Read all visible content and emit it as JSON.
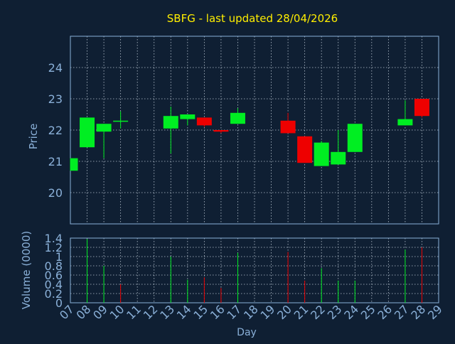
{
  "chart_data": {
    "type": "candlestick",
    "title": "SBFG - last updated 28/04/2026",
    "xlabel": "Day",
    "x_ticks": [
      "07",
      "08",
      "09",
      "10",
      "11",
      "12",
      "13",
      "14",
      "15",
      "16",
      "17",
      "18",
      "19",
      "20",
      "21",
      "22",
      "23",
      "24",
      "25",
      "26",
      "27",
      "28",
      "29"
    ],
    "price_panel": {
      "ylabel": "Price",
      "ylim": [
        19.0,
        25.0
      ],
      "y_ticks": [
        "20",
        "21",
        "22",
        "23",
        "24"
      ],
      "candles": [
        {
          "day": 7,
          "open": 20.7,
          "high": 21.1,
          "low": 20.7,
          "close": 21.1
        },
        {
          "day": 8,
          "open": 21.45,
          "high": 22.4,
          "low": 21.45,
          "close": 22.4
        },
        {
          "day": 9,
          "open": 21.95,
          "high": 22.2,
          "low": 21.1,
          "close": 22.2
        },
        {
          "day": 10,
          "open": 22.3,
          "high": 22.6,
          "low": 22.05,
          "close": 22.3
        },
        {
          "day": 13,
          "open": 22.05,
          "high": 22.75,
          "low": 21.25,
          "close": 22.45
        },
        {
          "day": 14,
          "open": 22.35,
          "high": 22.5,
          "low": 22.15,
          "close": 22.5
        },
        {
          "day": 15,
          "open": 22.4,
          "high": 22.4,
          "low": 22.1,
          "close": 22.15
        },
        {
          "day": 16,
          "open": 22.0,
          "high": 22.0,
          "low": 21.9,
          "close": 21.95
        },
        {
          "day": 17,
          "open": 22.2,
          "high": 22.7,
          "low": 22.2,
          "close": 22.55
        },
        {
          "day": 20,
          "open": 22.3,
          "high": 22.55,
          "low": 21.9,
          "close": 21.9
        },
        {
          "day": 21,
          "open": 21.8,
          "high": 21.8,
          "low": 20.95,
          "close": 20.95
        },
        {
          "day": 22,
          "open": 20.85,
          "high": 21.65,
          "low": 20.85,
          "close": 21.6
        },
        {
          "day": 23,
          "open": 20.9,
          "high": 22.0,
          "low": 20.9,
          "close": 21.3
        },
        {
          "day": 24,
          "open": 21.3,
          "high": 22.2,
          "low": 21.3,
          "close": 22.2
        },
        {
          "day": 27,
          "open": 22.15,
          "high": 22.95,
          "low": 22.15,
          "close": 22.35
        },
        {
          "day": 28,
          "open": 23.0,
          "high": 23.0,
          "low": 22.4,
          "close": 22.45
        }
      ]
    },
    "volume_panel": {
      "ylabel": "Volume (0000)",
      "ylim": [
        0,
        1.4
      ],
      "y_ticks": [
        "0",
        "0.2",
        "0.4",
        "0.6",
        "0.8",
        "1",
        "1.2",
        "1.4"
      ],
      "bars": [
        {
          "day": 8,
          "value": 1.38,
          "direction": "up"
        },
        {
          "day": 9,
          "value": 0.8,
          "direction": "up"
        },
        {
          "day": 10,
          "value": 0.4,
          "direction": "down"
        },
        {
          "day": 13,
          "value": 1.0,
          "direction": "up"
        },
        {
          "day": 14,
          "value": 0.5,
          "direction": "up"
        },
        {
          "day": 15,
          "value": 0.55,
          "direction": "down"
        },
        {
          "day": 16,
          "value": 0.32,
          "direction": "down"
        },
        {
          "day": 17,
          "value": 1.08,
          "direction": "up"
        },
        {
          "day": 20,
          "value": 1.1,
          "direction": "down"
        },
        {
          "day": 21,
          "value": 0.48,
          "direction": "down"
        },
        {
          "day": 22,
          "value": 0.75,
          "direction": "up"
        },
        {
          "day": 23,
          "value": 0.48,
          "direction": "up"
        },
        {
          "day": 24,
          "value": 0.48,
          "direction": "up"
        },
        {
          "day": 27,
          "value": 1.15,
          "direction": "up"
        },
        {
          "day": 28,
          "value": 1.2,
          "direction": "down"
        }
      ]
    },
    "grid": true,
    "colors": {
      "background": "#0f1f33",
      "up": "#00ee22",
      "down": "#ee0000",
      "title": "#ffee00",
      "axis_text": "#8ab0d8",
      "grid": "#b8c4d0",
      "frame": "#8ab0d8"
    }
  }
}
